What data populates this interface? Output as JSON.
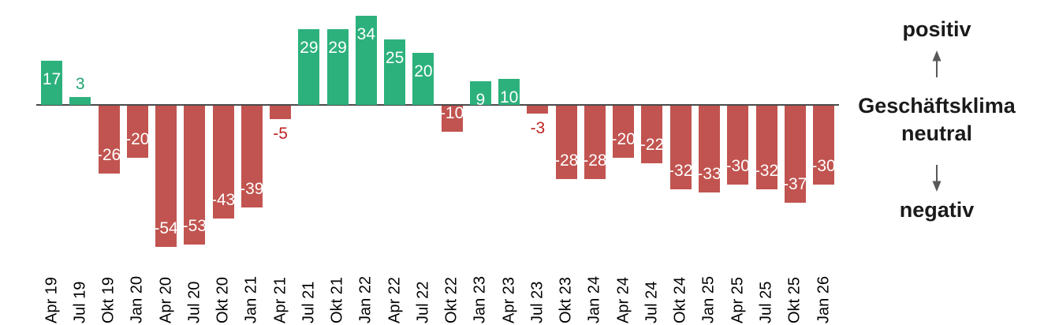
{
  "chart_data": {
    "type": "bar",
    "categories": [
      "Apr 19",
      "Jul 19",
      "Okt 19",
      "Jan 20",
      "Apr 20",
      "Jul 20",
      "Okt 20",
      "Jan 21",
      "Apr 21",
      "Jul 21",
      "Okt 21",
      "Jan 22",
      "Apr 22",
      "Jul 22",
      "Okt 22",
      "Jan 23",
      "Apr 23",
      "Jul 23",
      "Okt 23",
      "Jan 24",
      "Apr 24",
      "Jul 24",
      "Okt 24",
      "Jan 25",
      "Apr 25",
      "Jul 25",
      "Okt 25",
      "Jan 26"
    ],
    "values": [
      17,
      3,
      -26,
      -20,
      -54,
      -53,
      -43,
      -39,
      -5,
      29,
      29,
      34,
      25,
      20,
      -10,
      9,
      10,
      -3,
      -28,
      -28,
      -20,
      -22,
      -32,
      -33,
      -30,
      -32,
      -37,
      -30
    ],
    "title": "",
    "xlabel": "",
    "ylabel": "",
    "ylim": [
      -60,
      40
    ],
    "grid": false,
    "legend": "none",
    "colors": {
      "positive_bar": "#2cb17c",
      "negative_bar": "#c15450",
      "inside_value_label": "#ffffff",
      "outside_positive_label": "#1fa56f",
      "outside_negative_label": "#be2423",
      "axis_line": "#4a4a4a"
    },
    "value_label_outside_threshold": 5
  },
  "annotation": {
    "positive_label": "positiv",
    "center_label_line1": "Geschäftsklima",
    "center_label_line2": "neutral",
    "negative_label": "negativ",
    "up_arrow_icon": "arrow-up",
    "down_arrow_icon": "arrow-down",
    "arrow_color": "#595959",
    "text_color": "#1a1a1a"
  }
}
